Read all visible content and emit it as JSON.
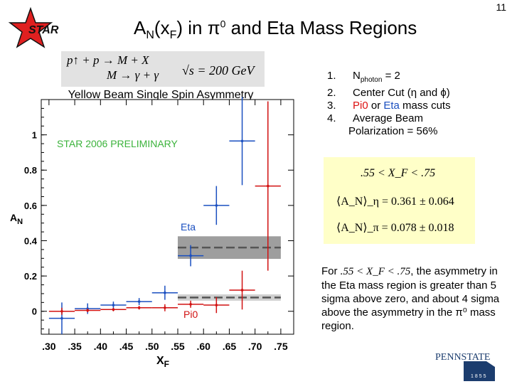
{
  "page_number": "11",
  "logo_text": "STAR",
  "title": {
    "a": "A",
    "a_sub": "N",
    "paren_open": "(x",
    "f_sub": "F",
    "paren_close": ") in ",
    "pi": "π",
    "pi_sup": "0",
    "rest": " and Eta Mass Regions"
  },
  "formula": {
    "line1": "p↑ + p → M + X",
    "line2": "M → γ + γ",
    "line3": "√s = 200 GeV"
  },
  "conditions": [
    {
      "num": "1.",
      "pre": "N",
      "sub": "photon",
      "post": " = 2"
    },
    {
      "num": "2.",
      "text": "Center Cut (η and ϕ)"
    },
    {
      "num": "3.",
      "pi0": "Pi0",
      "or": " or ",
      "eta": "Eta",
      "post": " mass cuts"
    },
    {
      "num": "4.",
      "text": "Average Beam",
      "text2": "Polarization = 56%"
    }
  ],
  "result_box": {
    "range": ".55 < X_F < .75",
    "eta_result": "⟨A_N⟩_η = 0.361 ± 0.064",
    "pi_result": "⟨A_N⟩_π = 0.078 ± 0.018"
  },
  "summary": {
    "for": "For",
    "range": ".55 < X_F < .75",
    "text": ", the asymmetry in the Eta mass region is greater than 5 sigma above zero, and about 4 sigma above the asymmetry in the π⁰ mass region."
  },
  "university": "PENNSTATE",
  "university_year": "1855",
  "colors": {
    "eta": "#1a4fc0",
    "pi0": "#d11111",
    "logo_star": "#e02020",
    "result_bg": "#ffffc8"
  },
  "chart_data": {
    "type": "scatter",
    "title": "Yellow Beam Single Spin Asymmetry",
    "preliminary": "STAR 2006 PRELIMINARY",
    "xlabel": "X",
    "xlabel_sub": "F",
    "ylabel": "A",
    "ylabel_sub": "N",
    "xlim": [
      0.285,
      0.775
    ],
    "ylim": [
      -0.13,
      1.2
    ],
    "x_ticks": [
      ".30",
      ".35",
      ".40",
      ".45",
      ".50",
      ".55",
      ".60",
      ".65",
      ".70",
      ".75"
    ],
    "x_tick_values": [
      0.3,
      0.35,
      0.4,
      0.45,
      0.5,
      0.55,
      0.6,
      0.65,
      0.7,
      0.75
    ],
    "y_ticks": [
      "0",
      "0.2",
      "0.4",
      "0.6",
      "0.8",
      "1"
    ],
    "y_tick_values": [
      0,
      0.2,
      0.4,
      0.6,
      0.8,
      1.0
    ],
    "series": [
      {
        "name": "Eta",
        "color": "#1a4fc0",
        "points": [
          {
            "x": 0.325,
            "y": -0.04,
            "xerr": 0.025,
            "yerr": 0.09
          },
          {
            "x": 0.375,
            "y": 0.015,
            "xerr": 0.025,
            "yerr": 0.03
          },
          {
            "x": 0.425,
            "y": 0.035,
            "xerr": 0.025,
            "yerr": 0.02
          },
          {
            "x": 0.475,
            "y": 0.055,
            "xerr": 0.025,
            "yerr": 0.02
          },
          {
            "x": 0.525,
            "y": 0.105,
            "xerr": 0.025,
            "yerr": 0.04
          },
          {
            "x": 0.575,
            "y": 0.315,
            "xerr": 0.025,
            "yerr": 0.06
          },
          {
            "x": 0.625,
            "y": 0.6,
            "xerr": 0.025,
            "yerr": 0.11
          },
          {
            "x": 0.675,
            "y": 0.965,
            "xerr": 0.025,
            "yerr": 0.25
          }
        ]
      },
      {
        "name": "Pi0",
        "color": "#d11111",
        "points": [
          {
            "x": 0.325,
            "y": 0.0,
            "xerr": 0.025,
            "yerr": 0.02
          },
          {
            "x": 0.375,
            "y": 0.005,
            "xerr": 0.025,
            "yerr": 0.01
          },
          {
            "x": 0.425,
            "y": 0.01,
            "xerr": 0.025,
            "yerr": 0.01
          },
          {
            "x": 0.475,
            "y": 0.02,
            "xerr": 0.025,
            "yerr": 0.01
          },
          {
            "x": 0.525,
            "y": 0.02,
            "xerr": 0.025,
            "yerr": 0.02
          },
          {
            "x": 0.575,
            "y": 0.04,
            "xerr": 0.025,
            "yerr": 0.02
          },
          {
            "x": 0.625,
            "y": 0.035,
            "xerr": 0.025,
            "yerr": 0.045
          },
          {
            "x": 0.675,
            "y": 0.12,
            "xerr": 0.025,
            "yerr": 0.11
          },
          {
            "x": 0.725,
            "y": 0.71,
            "xerr": 0.025,
            "yerr": 0.48
          }
        ]
      }
    ],
    "bands": [
      {
        "name": "Eta",
        "x_from": 0.55,
        "x_to": 0.75,
        "y": 0.361,
        "err": 0.064,
        "fill": "#9e9e9e"
      },
      {
        "name": "Pi0",
        "x_from": 0.55,
        "x_to": 0.75,
        "y": 0.078,
        "err": 0.018,
        "fill": "#cfcfcf"
      }
    ],
    "legend_labels": [
      {
        "text": "Eta",
        "color": "#1a4fc0"
      },
      {
        "text": "Pi0",
        "color": "#d11111"
      }
    ]
  }
}
